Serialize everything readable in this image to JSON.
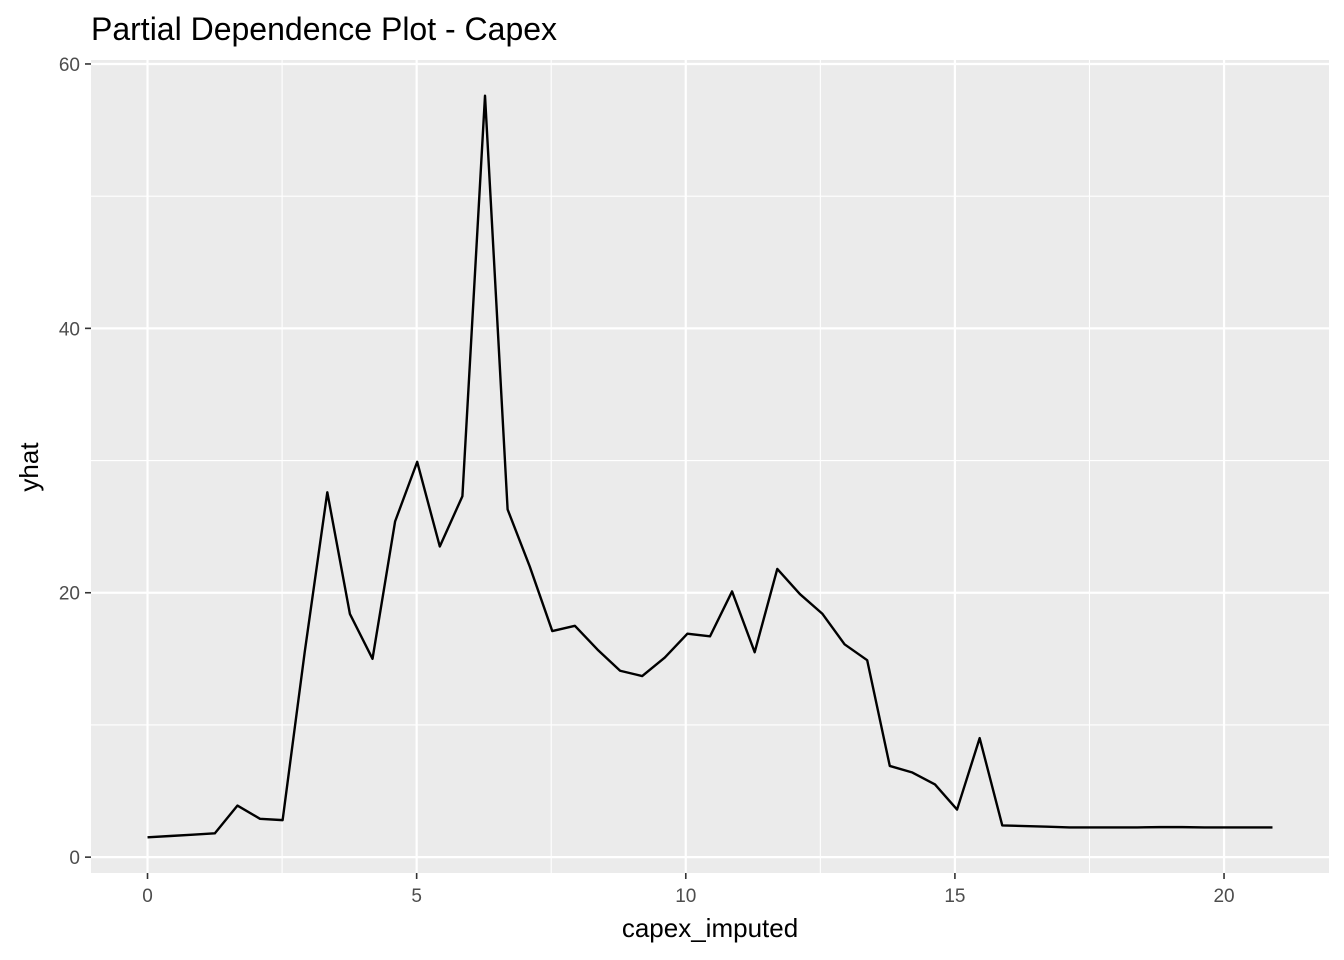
{
  "chart_data": {
    "type": "line",
    "title": "Partial Dependence Plot - Capex",
    "xlabel": "capex_imputed",
    "ylabel": "yhat",
    "xlim": [
      -1.05,
      21.95
    ],
    "ylim": [
      -1.2,
      60.3
    ],
    "x_ticks": [
      0,
      5,
      10,
      15,
      20
    ],
    "x_tick_labels": [
      "0",
      "5",
      "10",
      "15",
      "20"
    ],
    "y_ticks": [
      0,
      20,
      40,
      60
    ],
    "y_tick_labels": [
      "0",
      "20",
      "40",
      "60"
    ],
    "grid": true,
    "line_color": "#000000",
    "panel_background": "#ebebeb",
    "grid_color": "#ffffff",
    "series": [
      {
        "x": [
          0,
          0.42,
          0.84,
          1.25,
          1.67,
          2.09,
          2.51,
          2.92,
          3.34,
          3.76,
          4.18,
          4.6,
          5.01,
          5.43,
          5.85,
          6.27,
          6.69,
          7.1,
          7.52,
          7.94,
          8.36,
          8.78,
          9.19,
          9.61,
          10.03,
          10.45,
          10.86,
          11.28,
          11.7,
          12.12,
          12.54,
          12.95,
          13.37,
          13.79,
          14.21,
          14.63,
          15.04,
          15.46,
          15.88,
          16.3,
          16.72,
          17.13,
          17.55,
          17.97,
          18.39,
          18.81,
          19.22,
          19.64,
          20.06,
          20.48,
          20.9
        ],
        "y": [
          1.5,
          1.6,
          1.7,
          1.8,
          3.9,
          2.9,
          2.8,
          15.5,
          27.6,
          18.4,
          15.0,
          25.4,
          29.9,
          23.5,
          27.3,
          57.6,
          26.3,
          22.0,
          17.1,
          17.5,
          15.7,
          14.1,
          13.7,
          15.1,
          16.9,
          16.7,
          20.1,
          15.5,
          21.8,
          19.9,
          18.4,
          16.1,
          14.9,
          6.9,
          6.4,
          5.5,
          3.6,
          9.0,
          2.4,
          2.35,
          2.3,
          2.25,
          2.25,
          2.25,
          2.25,
          2.27,
          2.27,
          2.25,
          2.25,
          2.25,
          2.25
        ]
      }
    ]
  }
}
